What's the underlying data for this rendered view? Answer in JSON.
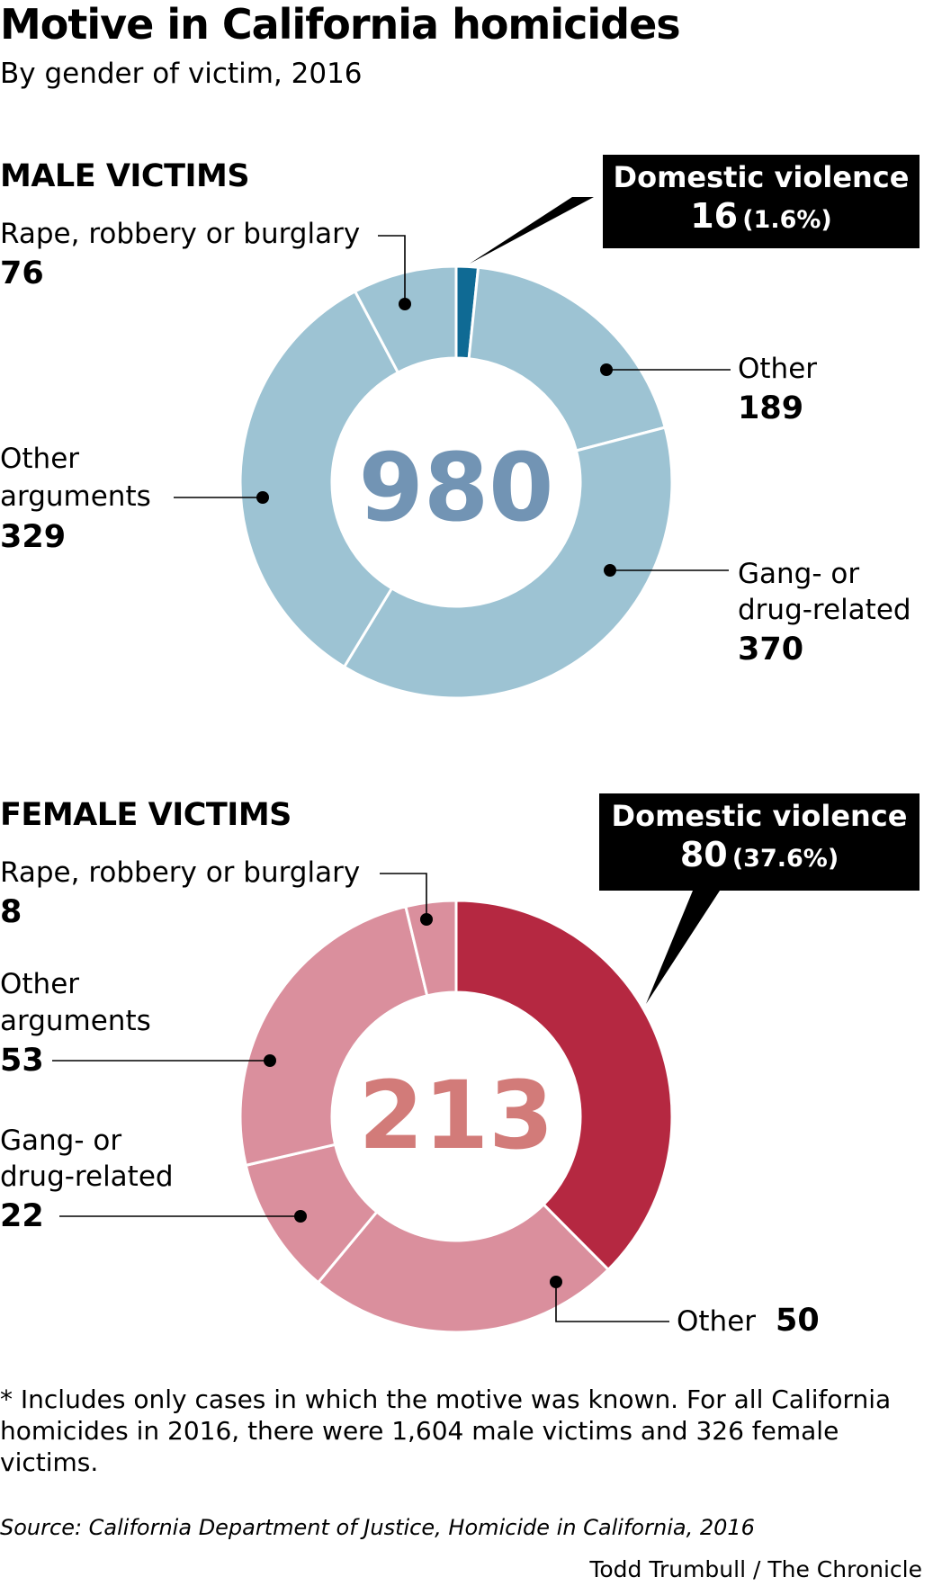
{
  "title": "Motive in California homicides",
  "subtitle": "By gender of victim, 2016",
  "colors": {
    "male_base": "#9dc3d3",
    "male_accent": "#0f6a94",
    "male_center": "#7294b4",
    "female_base": "#da8f9d",
    "female_accent": "#b52841",
    "female_center": "#d27b79"
  },
  "chart_data": [
    {
      "type": "pie",
      "title": "MALE VICTIMS",
      "total": 980,
      "slices": [
        {
          "label": "Domestic violence",
          "value": 16,
          "pct": "(1.6%)"
        },
        {
          "label": "Other",
          "value": 189
        },
        {
          "label": "Gang- or drug-related",
          "value": 370
        },
        {
          "label": "Other arguments",
          "value": 329
        },
        {
          "label": "Rape, robbery or burglary",
          "value": 76
        }
      ]
    },
    {
      "type": "pie",
      "title": "FEMALE VICTIMS",
      "total": 213,
      "slices": [
        {
          "label": "Domestic violence",
          "value": 80,
          "pct": "(37.6%)"
        },
        {
          "label": "Other",
          "value": 50
        },
        {
          "label": "Gang- or drug-related",
          "value": 22
        },
        {
          "label": "Other arguments",
          "value": 53
        },
        {
          "label": "Rape, robbery or burglary",
          "value": 8
        }
      ]
    }
  ],
  "labels": {
    "male": {
      "rape_line": "Rape, robbery or burglary",
      "other_line": "Other",
      "gang_line1": "Gang- or",
      "gang_line2": "drug-related",
      "args_line1": "Other",
      "args_line2": "arguments"
    },
    "female": {
      "rape_line": "Rape, robbery or burglary",
      "args_line1": "Other",
      "args_line2": "arguments",
      "gang_line1": "Gang- or",
      "gang_line2": "drug-related",
      "other_line": "Other"
    }
  },
  "footnote": "* Includes only cases in which the motive was known. For all California homicides in 2016, there were 1,604 male victims and 326 female victims.",
  "source": "Source: California Department of Justice, Homicide in California, 2016",
  "credit": "Todd Trumbull / The Chronicle"
}
